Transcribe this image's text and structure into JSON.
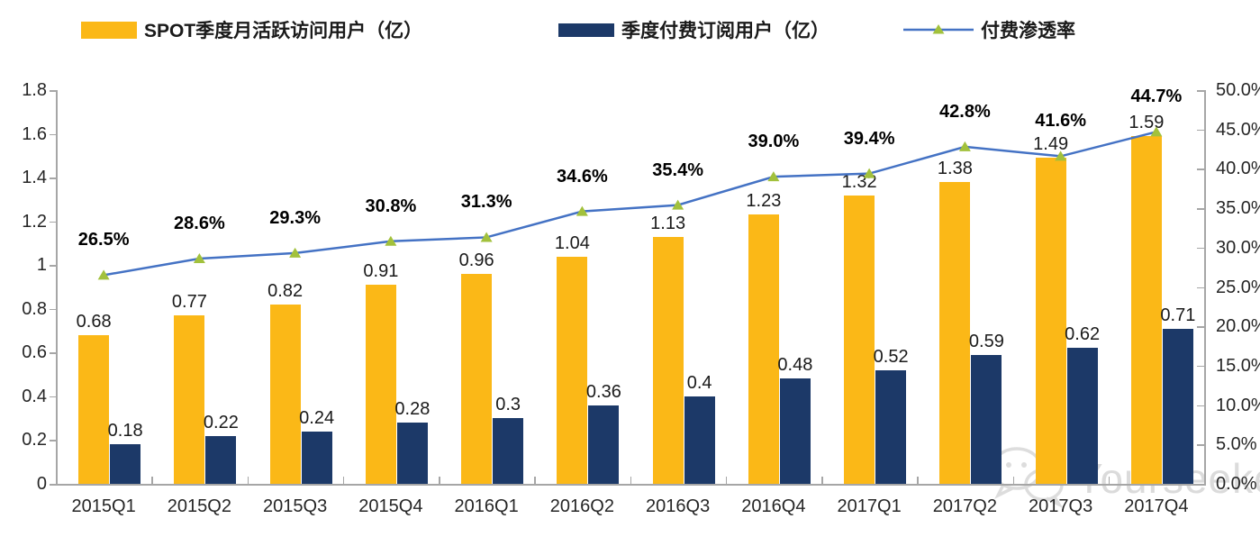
{
  "chart_data": {
    "type": "combo",
    "subtype": [
      "bar",
      "bar",
      "line"
    ],
    "categories": [
      "2015Q1",
      "2015Q2",
      "2015Q3",
      "2015Q4",
      "2016Q1",
      "2016Q2",
      "2016Q3",
      "2016Q4",
      "2017Q1",
      "2017Q2",
      "2017Q3",
      "2017Q4"
    ],
    "series": [
      {
        "name": "SPOT季度月活跃访问用户（亿）",
        "type": "bar",
        "axis": "left",
        "color": "#FBB817",
        "values": [
          0.68,
          0.77,
          0.82,
          0.91,
          0.96,
          1.04,
          1.13,
          1.23,
          1.32,
          1.38,
          1.49,
          1.59
        ],
        "labels": [
          "0.68",
          "0.77",
          "0.82",
          "0.91",
          "0.96",
          "1.04",
          "1.13",
          "1.23",
          "1.32",
          "1.38",
          "1.49",
          "1.59"
        ]
      },
      {
        "name": "季度付费订阅用户（亿）",
        "type": "bar",
        "axis": "left",
        "color": "#1C3968",
        "values": [
          0.18,
          0.22,
          0.24,
          0.28,
          0.3,
          0.36,
          0.4,
          0.48,
          0.52,
          0.59,
          0.62,
          0.71
        ],
        "labels": [
          "0.18",
          "0.22",
          "0.24",
          "0.28",
          "0.3",
          "0.36",
          "0.4",
          "0.48",
          "0.52",
          "0.59",
          "0.62",
          "0.71"
        ]
      },
      {
        "name": "付费渗透率",
        "type": "line",
        "axis": "right",
        "color": "#4472C4",
        "marker": "triangle",
        "marker_color": "#A2C13C",
        "values": [
          26.5,
          28.6,
          29.3,
          30.8,
          31.3,
          34.6,
          35.4,
          39.0,
          39.4,
          42.8,
          41.6,
          44.7
        ],
        "labels": [
          "26.5%",
          "28.6%",
          "29.3%",
          "30.8%",
          "31.3%",
          "34.6%",
          "35.4%",
          "39.0%",
          "39.4%",
          "42.8%",
          "41.6%",
          "44.7%"
        ]
      }
    ],
    "left_axis": {
      "min": 0,
      "max": 1.8,
      "tick_labels": [
        "0",
        "0.2",
        "0.4",
        "0.6",
        "0.8",
        "1",
        "1.2",
        "1.4",
        "1.6",
        "1.8"
      ]
    },
    "right_axis": {
      "min": 0,
      "max": 50,
      "tick_labels": [
        "0.0%",
        "5.0%",
        "10.0%",
        "15.0%",
        "20.0%",
        "25.0%",
        "30.0%",
        "35.0%",
        "40.0%",
        "45.0%",
        "50.0%"
      ]
    },
    "grid": false,
    "legend_position": "top"
  },
  "watermark": {
    "text": "Yourseeker"
  },
  "colors": {
    "axis": "#A6A6A6",
    "data_label": "#1A1A1A",
    "pct_label": "#000000"
  }
}
